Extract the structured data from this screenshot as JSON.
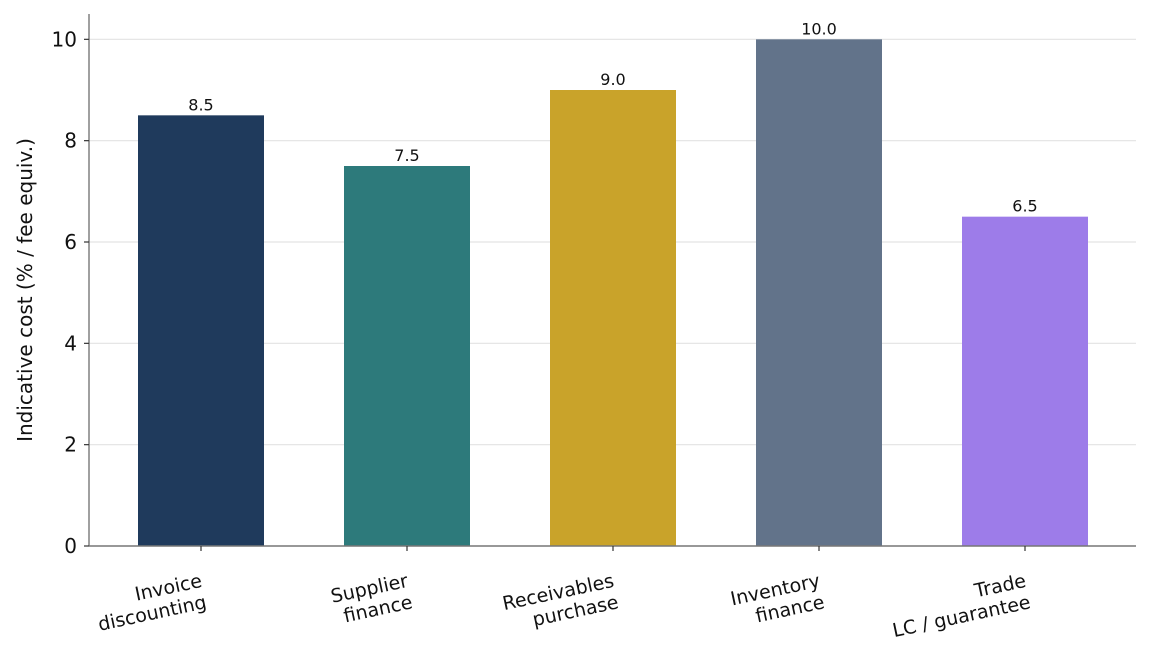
{
  "chart_data": {
    "type": "bar",
    "title": "",
    "xlabel": "",
    "ylabel": "Indicative cost (% / fee equiv.)",
    "categories": [
      [
        "Invoice",
        "discounting"
      ],
      [
        "Supplier",
        "finance"
      ],
      [
        "Receivables",
        "purchase"
      ],
      [
        "Inventory",
        "finance"
      ],
      [
        "Trade",
        "LC / guarantee"
      ]
    ],
    "values": [
      8.5,
      7.5,
      9.0,
      10.0,
      6.5
    ],
    "value_labels": [
      "8.5",
      "7.5",
      "9.0",
      "10.0",
      "6.5"
    ],
    "colors": [
      "#1f3a5c",
      "#2d7a7b",
      "#c9a32a",
      "#62738a",
      "#9d7ce9"
    ],
    "ylim": [
      0,
      10.5
    ],
    "yticks": [
      0,
      2,
      4,
      6,
      8,
      10
    ],
    "grid": "horizontal",
    "legend": "none"
  }
}
